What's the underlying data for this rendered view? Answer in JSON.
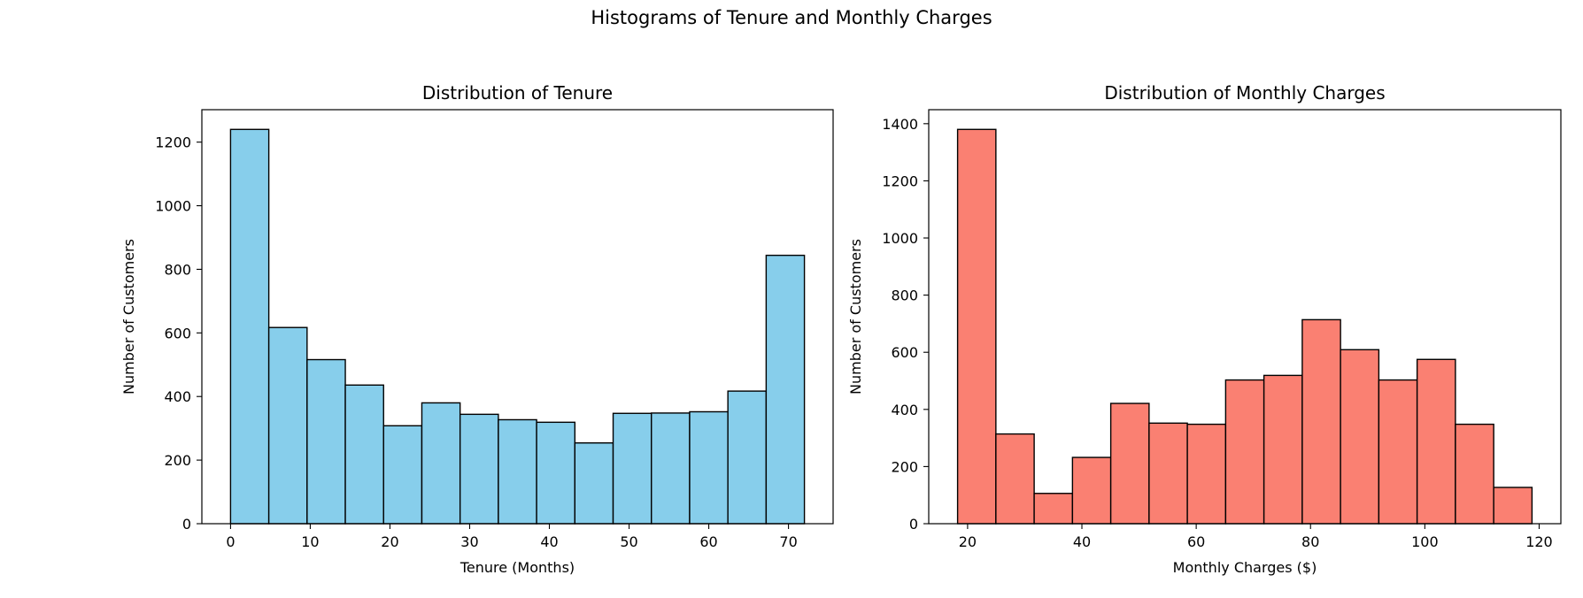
{
  "suptitle": "Histograms of Tenure and Monthly Charges",
  "chart_data": [
    {
      "type": "bar",
      "title": "Distribution of Tenure",
      "xlabel": "Tenure (Months)",
      "ylabel": "Number of Customers",
      "bar_color": "#87CEEB",
      "edge_color": "#000000",
      "bin_edges": [
        0,
        4.8,
        9.6,
        14.4,
        19.2,
        24,
        28.8,
        33.6,
        38.4,
        43.2,
        48,
        52.8,
        57.6,
        62.4,
        67.2,
        72
      ],
      "values": [
        1240,
        617,
        516,
        436,
        308,
        380,
        344,
        327,
        319,
        254,
        347,
        348,
        352,
        417,
        844
      ],
      "xlim": [
        -3.6,
        75.6
      ],
      "ylim": [
        0,
        1302
      ],
      "xticks": [
        0,
        10,
        20,
        30,
        40,
        50,
        60,
        70
      ],
      "yticks": [
        0,
        200,
        400,
        600,
        800,
        1000,
        1200
      ]
    },
    {
      "type": "bar",
      "title": "Distribution of Monthly Charges",
      "xlabel": "Monthly Charges ($)",
      "ylabel": "Number of Customers",
      "bar_color": "#FA8072",
      "edge_color": "#000000",
      "bin_edges": [
        18.25,
        24.95,
        31.65,
        38.35,
        45.05,
        51.75,
        58.45,
        65.15,
        71.85,
        78.55,
        85.25,
        91.95,
        98.65,
        105.35,
        112.05,
        118.75
      ],
      "values": [
        1380,
        314,
        106,
        232,
        421,
        352,
        348,
        503,
        519,
        714,
        609,
        503,
        575,
        348,
        127
      ],
      "xlim": [
        13.2,
        123.8
      ],
      "ylim": [
        0,
        1449
      ],
      "xticks": [
        20,
        40,
        60,
        80,
        100,
        120
      ],
      "yticks": [
        0,
        200,
        400,
        600,
        800,
        1000,
        1200,
        1400
      ]
    }
  ]
}
